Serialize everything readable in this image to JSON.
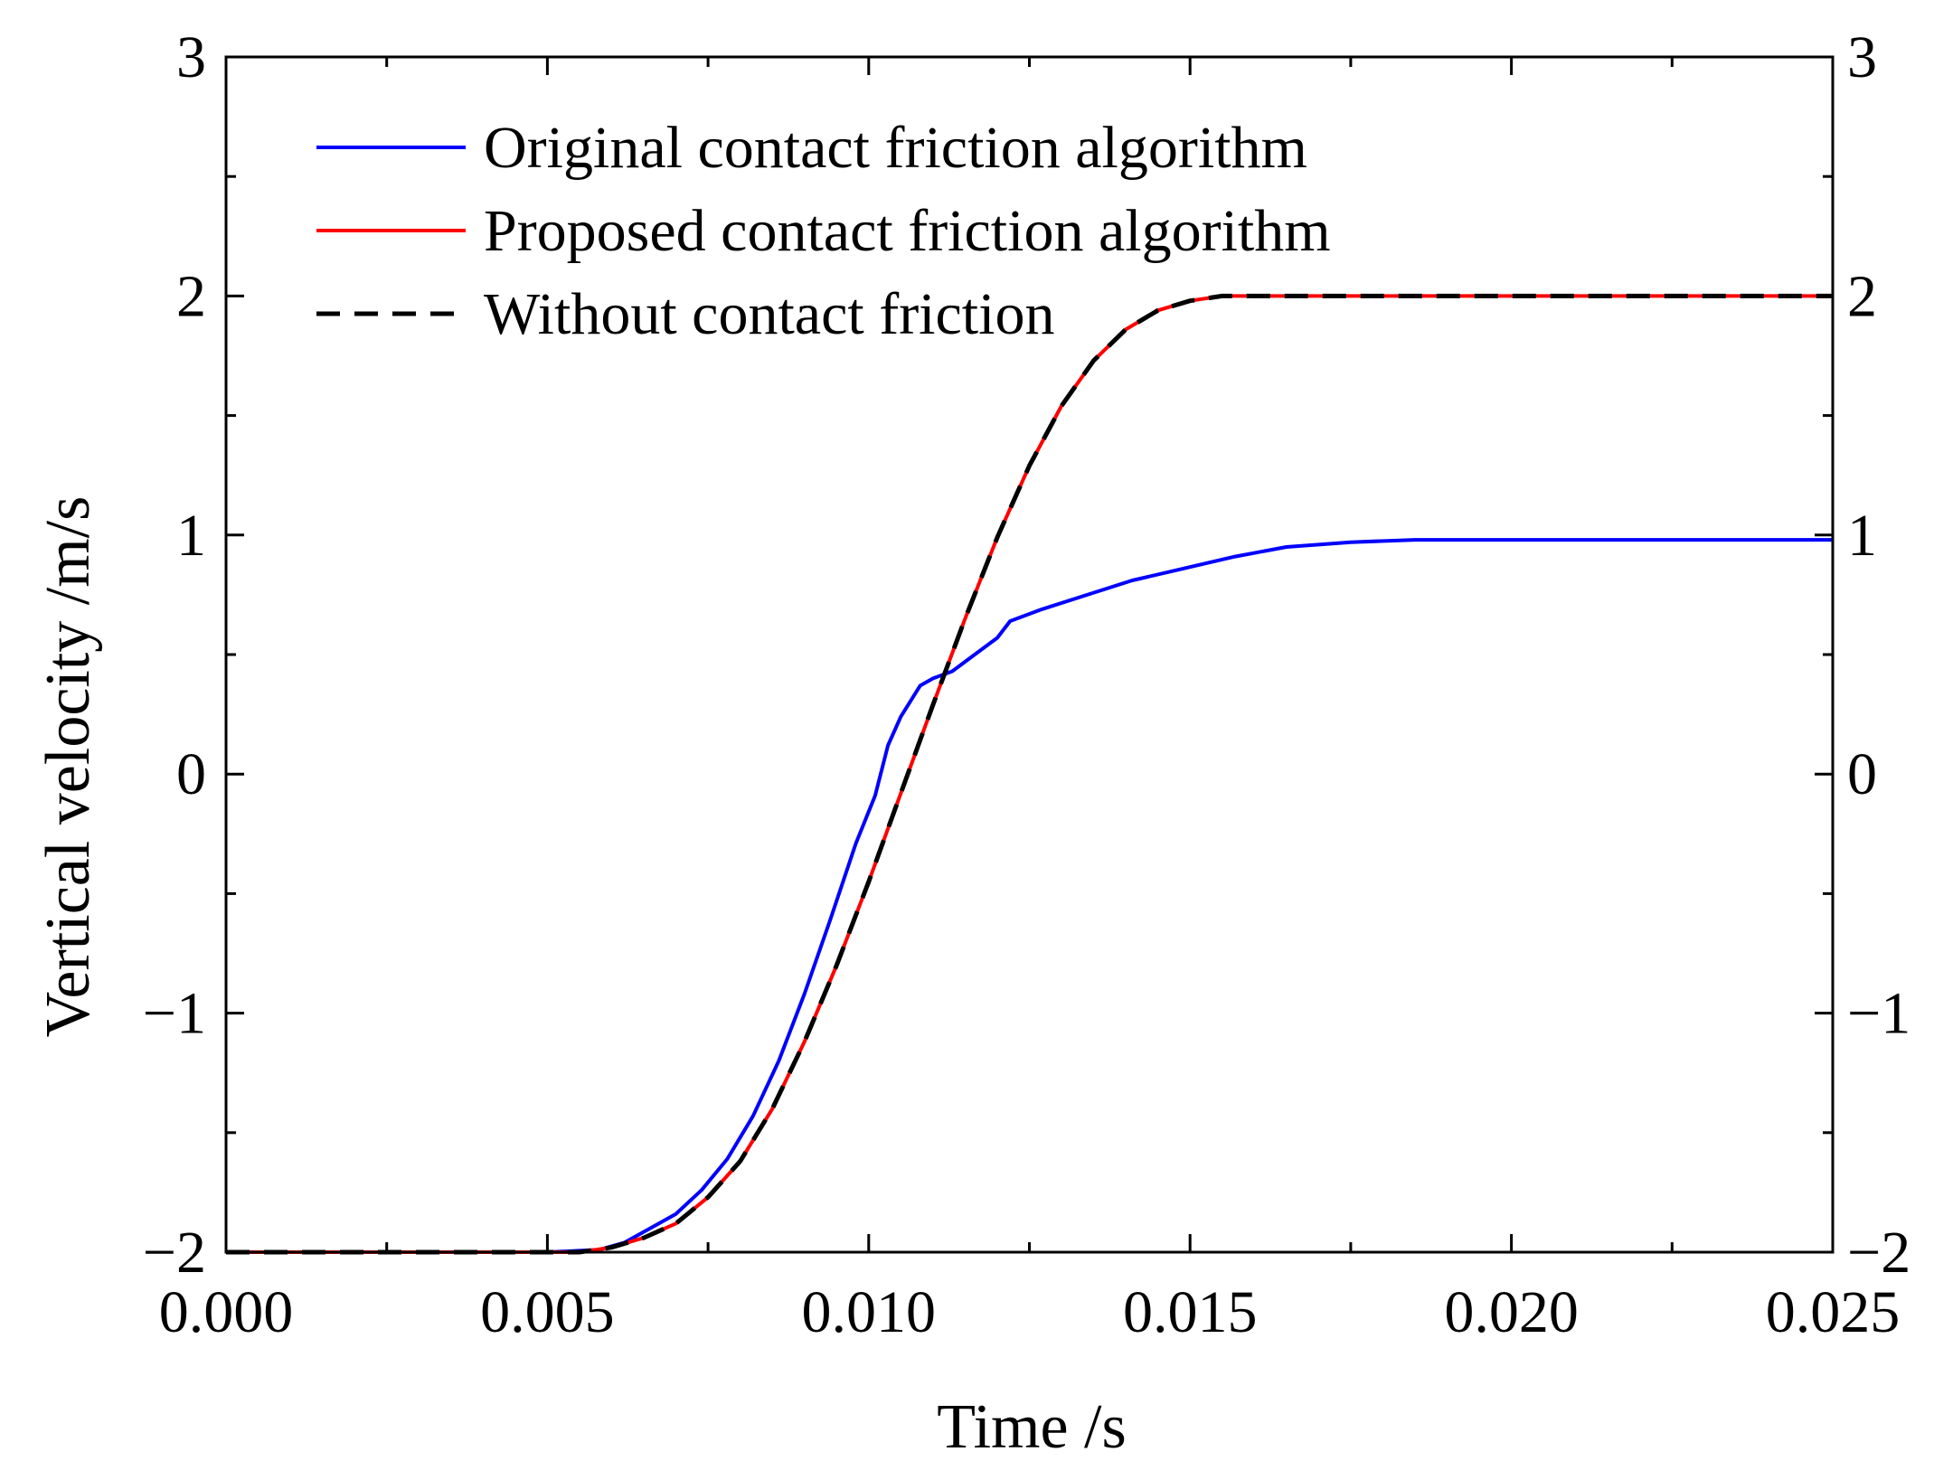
{
  "chart_data": {
    "type": "line",
    "title": "",
    "xlabel": "Time /s",
    "ylabel": "Vertical velocity /m/s",
    "xlim": [
      0,
      0.025
    ],
    "ylim": [
      -2,
      3
    ],
    "x_ticks": [
      0,
      0.005,
      0.01,
      0.015,
      0.02,
      0.025
    ],
    "x_tick_labels": [
      "0.000",
      "0.005",
      "0.010",
      "0.015",
      "0.020",
      "0.025"
    ],
    "y_ticks": [
      -2,
      -1,
      0,
      1,
      2,
      3
    ],
    "y_tick_labels": [
      "−2",
      "−1",
      "0",
      "1",
      "2",
      "3"
    ],
    "y_tick_labels_right": [
      "−2",
      "−1",
      "0",
      "1",
      "2",
      "3"
    ],
    "grid": false,
    "legend_position": "top-left",
    "series": [
      {
        "name": "Original contact friction algorithm",
        "color": "#0000ff",
        "dash": "solid",
        "x": [
          0,
          0.005,
          0.0058,
          0.0062,
          0.0066,
          0.007,
          0.0074,
          0.0078,
          0.0082,
          0.0086,
          0.009,
          0.0094,
          0.0098,
          0.0101,
          0.0103,
          0.0105,
          0.0108,
          0.011,
          0.0113,
          0.0116,
          0.012,
          0.0122,
          0.0127,
          0.0134,
          0.0141,
          0.0149,
          0.0157,
          0.0165,
          0.0175,
          0.0185,
          0.02,
          0.025
        ],
        "y": [
          -2,
          -2,
          -1.99,
          -1.96,
          -1.9,
          -1.84,
          -1.74,
          -1.61,
          -1.43,
          -1.2,
          -0.92,
          -0.61,
          -0.29,
          -0.09,
          0.12,
          0.24,
          0.37,
          0.4,
          0.43,
          0.49,
          0.57,
          0.64,
          0.69,
          0.75,
          0.81,
          0.86,
          0.91,
          0.95,
          0.97,
          0.98,
          0.98,
          0.98
        ]
      },
      {
        "name": "Proposed contact friction algorithm",
        "color": "#ff0000",
        "dash": "solid",
        "x": [
          0,
          0.0055,
          0.006,
          0.0065,
          0.007,
          0.0075,
          0.008,
          0.0085,
          0.009,
          0.0095,
          0.01,
          0.0105,
          0.011,
          0.0115,
          0.012,
          0.0125,
          0.013,
          0.0135,
          0.014,
          0.0145,
          0.015,
          0.0155,
          0.016,
          0.025
        ],
        "y": [
          -2,
          -2,
          -1.98,
          -1.94,
          -1.88,
          -1.77,
          -1.62,
          -1.4,
          -1.12,
          -0.8,
          -0.45,
          -0.08,
          0.29,
          0.65,
          0.99,
          1.29,
          1.54,
          1.73,
          1.86,
          1.94,
          1.98,
          2,
          2,
          2
        ]
      },
      {
        "name": "Without contact friction",
        "color": "#000000",
        "dash": "dashed",
        "x": [
          0,
          0.0055,
          0.006,
          0.0065,
          0.007,
          0.0075,
          0.008,
          0.0085,
          0.009,
          0.0095,
          0.01,
          0.0105,
          0.011,
          0.0115,
          0.012,
          0.0125,
          0.013,
          0.0135,
          0.014,
          0.0145,
          0.015,
          0.0155,
          0.016,
          0.025
        ],
        "y": [
          -2,
          -2,
          -1.98,
          -1.94,
          -1.88,
          -1.77,
          -1.62,
          -1.4,
          -1.12,
          -0.8,
          -0.45,
          -0.08,
          0.29,
          0.65,
          0.99,
          1.29,
          1.54,
          1.73,
          1.86,
          1.94,
          1.98,
          2,
          2,
          2
        ]
      }
    ]
  }
}
